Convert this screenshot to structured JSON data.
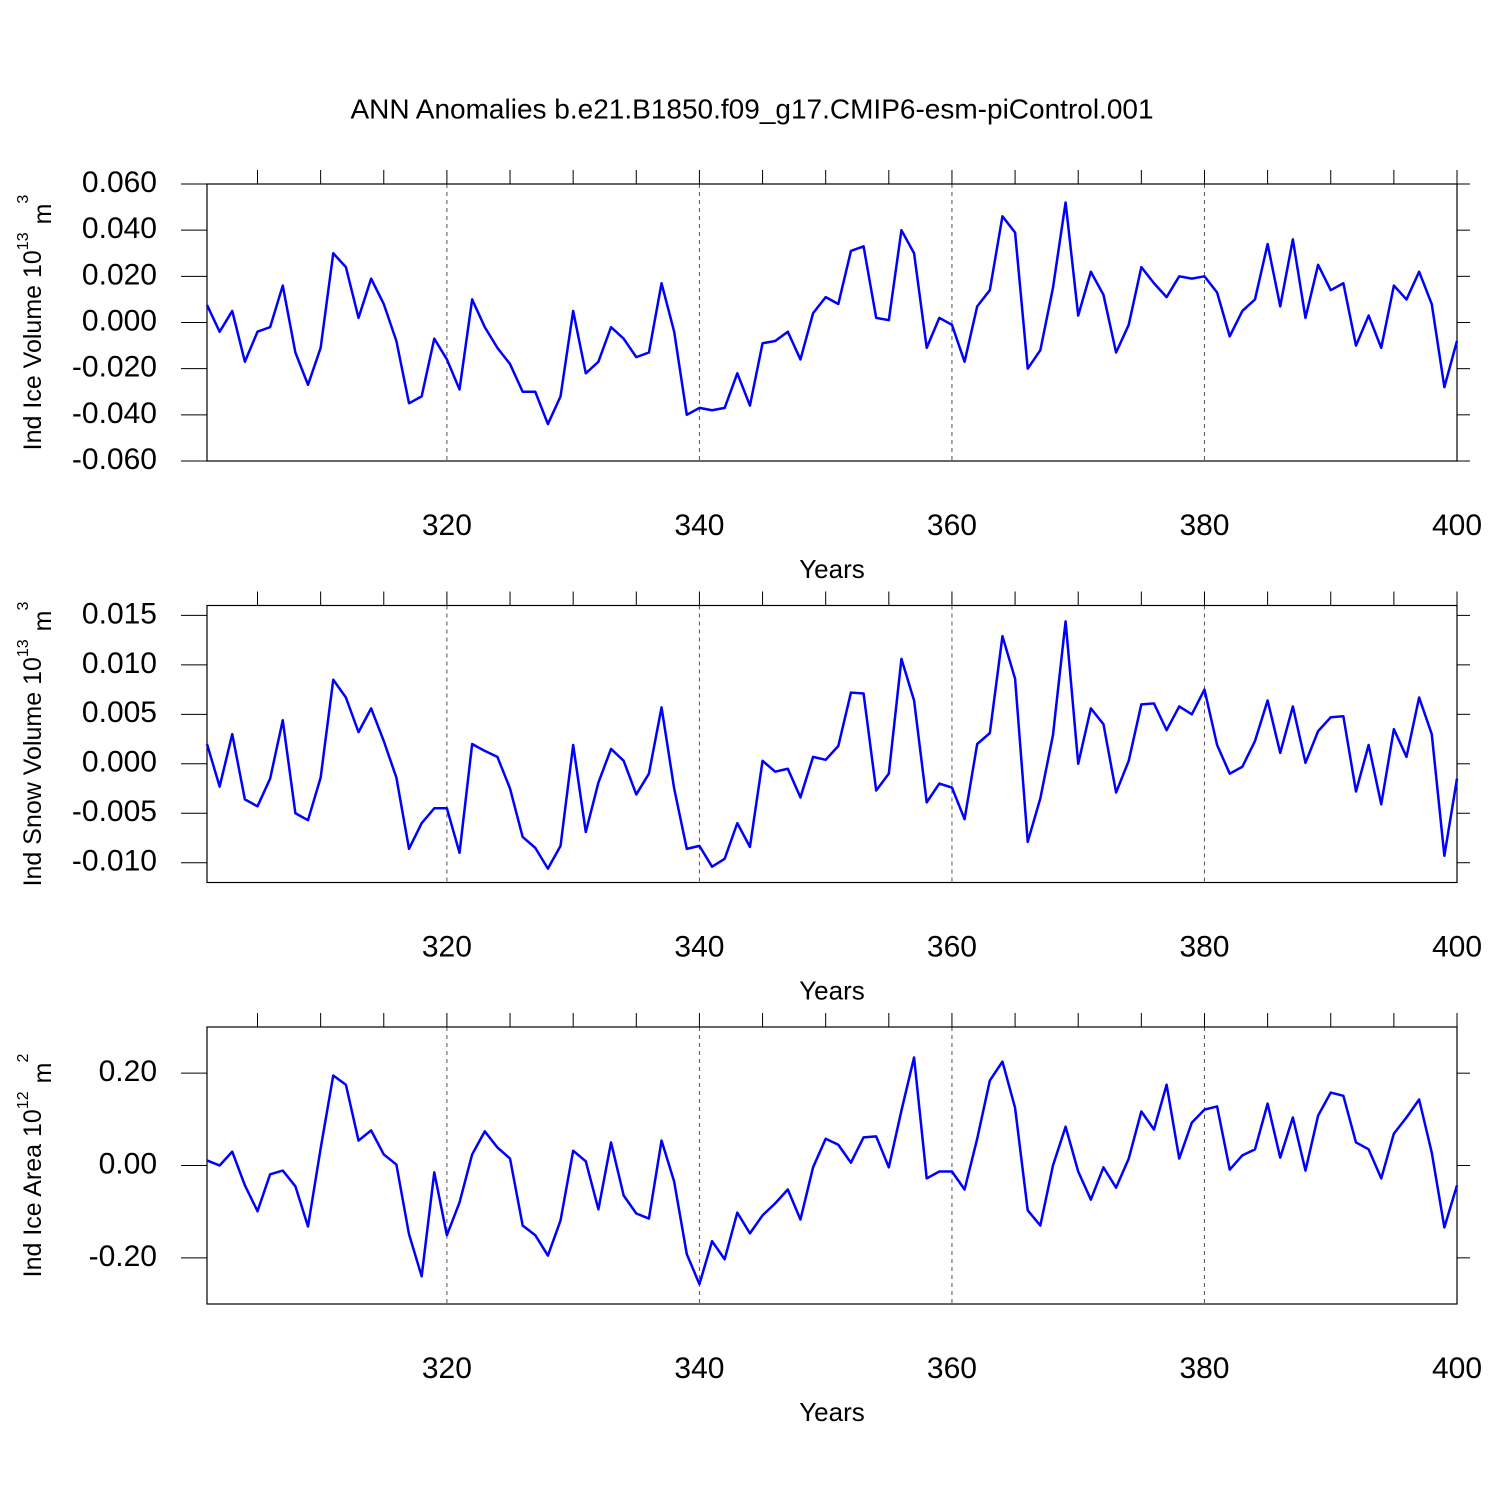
{
  "title": "ANN Anomalies b.e21.B1850.f09_g17.CMIP6-esm-piControl.001",
  "chart_data": [
    {
      "type": "line",
      "y_label": {
        "text": "Ind Ice Volume 10",
        "power": "13",
        "unit": "m",
        "unit_power": "3"
      },
      "x_label": "Years",
      "x": [
        301,
        302,
        303,
        304,
        305,
        306,
        307,
        308,
        309,
        310,
        311,
        312,
        313,
        314,
        315,
        316,
        317,
        318,
        319,
        320,
        321,
        322,
        323,
        324,
        325,
        326,
        327,
        328,
        329,
        330,
        331,
        332,
        333,
        334,
        335,
        336,
        337,
        338,
        339,
        340,
        341,
        342,
        343,
        344,
        345,
        346,
        347,
        348,
        349,
        350,
        351,
        352,
        353,
        354,
        355,
        356,
        357,
        358,
        359,
        360,
        361,
        362,
        363,
        364,
        365,
        366,
        367,
        368,
        369,
        370,
        371,
        372,
        373,
        374,
        375,
        376,
        377,
        378,
        379,
        380,
        381,
        382,
        383,
        384,
        385,
        386,
        387,
        388,
        389,
        390,
        391,
        392,
        393,
        394,
        395,
        396,
        397,
        398,
        399,
        400
      ],
      "series": [
        {
          "color": "#0000ff",
          "values": [
            0.0076,
            -0.004,
            0.005,
            -0.017,
            -0.004,
            -0.002,
            0.016,
            -0.013,
            -0.027,
            -0.011,
            0.03,
            0.024,
            0.002,
            0.019,
            0.008,
            -0.008,
            -0.035,
            -0.032,
            -0.007,
            -0.016,
            -0.029,
            0.01,
            -0.002,
            -0.011,
            -0.018,
            -0.03,
            -0.03,
            -0.044,
            -0.032,
            0.005,
            -0.022,
            -0.017,
            -0.002,
            -0.007,
            -0.015,
            -0.013,
            0.017,
            -0.004,
            -0.04,
            -0.037,
            -0.038,
            -0.037,
            -0.022,
            -0.036,
            -0.009,
            -0.008,
            -0.004,
            -0.016,
            0.004,
            0.011,
            0.008,
            0.031,
            0.033,
            0.002,
            0.001,
            0.04,
            0.03,
            -0.011,
            0.002,
            -0.001,
            -0.017,
            0.007,
            0.014,
            0.046,
            0.039,
            -0.02,
            -0.012,
            0.015,
            0.052,
            0.003,
            0.022,
            0.012,
            -0.013,
            -0.001,
            0.024,
            0.017,
            0.011,
            0.02,
            0.019,
            0.02,
            0.013,
            -0.006,
            0.005,
            0.01,
            0.034,
            0.007,
            0.036,
            0.002,
            0.025,
            0.014,
            0.017,
            -0.01,
            0.003,
            -0.011,
            0.016,
            0.01,
            0.022,
            0.008,
            -0.028,
            -0.008
          ]
        }
      ],
      "xlim": [
        301,
        400
      ],
      "xticks": [
        320,
        340,
        360,
        380,
        400
      ],
      "xminorticks": [
        305,
        310,
        315,
        325,
        330,
        335,
        345,
        350,
        355,
        365,
        370,
        375,
        385,
        390,
        395
      ],
      "ylim": [
        -0.06,
        0.06
      ],
      "yticks": [
        {
          "value": -0.06,
          "label": "-0.060"
        },
        {
          "value": -0.04,
          "label": "-0.040"
        },
        {
          "value": -0.02,
          "label": "-0.020"
        },
        {
          "value": 0,
          "label": "0.000"
        },
        {
          "value": 0.02,
          "label": "0.020"
        },
        {
          "value": 0.04,
          "label": "0.040"
        },
        {
          "value": 0.06,
          "label": "0.060"
        }
      ],
      "grid": "x"
    },
    {
      "type": "line",
      "y_label": {
        "text": "Ind Snow Volume 10",
        "power": "13",
        "unit": "m",
        "unit_power": "3"
      },
      "x_label": "Years",
      "x": [
        301,
        302,
        303,
        304,
        305,
        306,
        307,
        308,
        309,
        310,
        311,
        312,
        313,
        314,
        315,
        316,
        317,
        318,
        319,
        320,
        321,
        322,
        323,
        324,
        325,
        326,
        327,
        328,
        329,
        330,
        331,
        332,
        333,
        334,
        335,
        336,
        337,
        338,
        339,
        340,
        341,
        342,
        343,
        344,
        345,
        346,
        347,
        348,
        349,
        350,
        351,
        352,
        353,
        354,
        355,
        356,
        357,
        358,
        359,
        360,
        361,
        362,
        363,
        364,
        365,
        366,
        367,
        368,
        369,
        370,
        371,
        372,
        373,
        374,
        375,
        376,
        377,
        378,
        379,
        380,
        381,
        382,
        383,
        384,
        385,
        386,
        387,
        388,
        389,
        390,
        391,
        392,
        393,
        394,
        395,
        396,
        397,
        398,
        399,
        400
      ],
      "series": [
        {
          "color": "#0000ff",
          "values": [
            0.002,
            -0.0023,
            0.003,
            -0.0036,
            -0.0043,
            -0.0015,
            0.0044,
            -0.005,
            -0.0057,
            -0.0014,
            0.0085,
            0.0067,
            0.0032,
            0.0056,
            0.0023,
            -0.0014,
            -0.0086,
            -0.006,
            -0.0045,
            -0.0045,
            -0.009,
            0.002,
            0.0013,
            0.0007,
            -0.0025,
            -0.0074,
            -0.0085,
            -0.0106,
            -0.0083,
            0.0019,
            -0.0069,
            -0.0019,
            0.0015,
            0.0003,
            -0.0031,
            -0.001,
            0.0057,
            -0.0025,
            -0.0086,
            -0.0083,
            -0.0104,
            -0.0096,
            -0.006,
            -0.0084,
            0.0003,
            -0.0008,
            -0.0005,
            -0.0034,
            0.0007,
            0.0004,
            0.0018,
            0.0072,
            0.0071,
            -0.0027,
            -0.001,
            0.0106,
            0.0064,
            -0.0039,
            -0.002,
            -0.0024,
            -0.0056,
            0.002,
            0.0031,
            0.0129,
            0.0086,
            -0.0079,
            -0.0035,
            0.0029,
            0.0144,
            0.0,
            0.0056,
            0.004,
            -0.0029,
            0.0003,
            0.006,
            0.0061,
            0.0034,
            0.0058,
            0.005,
            0.0075,
            0.0019,
            -0.001,
            -0.0003,
            0.0023,
            0.0064,
            0.0011,
            0.0058,
            0.0001,
            0.0033,
            0.0047,
            0.0048,
            -0.0028,
            0.0019,
            -0.0041,
            0.0035,
            0.0007,
            0.0067,
            0.003,
            -0.0093,
            -0.0015
          ]
        }
      ],
      "xlim": [
        301,
        400
      ],
      "xticks": [
        320,
        340,
        360,
        380,
        400
      ],
      "xminorticks": [
        305,
        310,
        315,
        325,
        330,
        335,
        345,
        350,
        355,
        365,
        370,
        375,
        385,
        390,
        395
      ],
      "ylim": [
        -0.012,
        0.016
      ],
      "yticks": [
        {
          "value": -0.01,
          "label": "-0.010"
        },
        {
          "value": -0.005,
          "label": "-0.005"
        },
        {
          "value": 0,
          "label": "0.000"
        },
        {
          "value": 0.005,
          "label": "0.005"
        },
        {
          "value": 0.01,
          "label": "0.010"
        },
        {
          "value": 0.015,
          "label": "0.015"
        }
      ],
      "grid": "x"
    },
    {
      "type": "line",
      "y_label": {
        "text": "Ind Ice Area 10",
        "power": "12",
        "unit": "m",
        "unit_power": "2"
      },
      "x_label": "Years",
      "x": [
        301,
        302,
        303,
        304,
        305,
        306,
        307,
        308,
        309,
        310,
        311,
        312,
        313,
        314,
        315,
        316,
        317,
        318,
        319,
        320,
        321,
        322,
        323,
        324,
        325,
        326,
        327,
        328,
        329,
        330,
        331,
        332,
        333,
        334,
        335,
        336,
        337,
        338,
        339,
        340,
        341,
        342,
        343,
        344,
        345,
        346,
        347,
        348,
        349,
        350,
        351,
        352,
        353,
        354,
        355,
        356,
        357,
        358,
        359,
        360,
        361,
        362,
        363,
        364,
        365,
        366,
        367,
        368,
        369,
        370,
        371,
        372,
        373,
        374,
        375,
        376,
        377,
        378,
        379,
        380,
        381,
        382,
        383,
        384,
        385,
        386,
        387,
        388,
        389,
        390,
        391,
        392,
        393,
        394,
        395,
        396,
        397,
        398,
        399,
        400
      ],
      "series": [
        {
          "color": "#0000ff",
          "values": [
            0.011,
            0.0,
            0.03,
            -0.043,
            -0.099,
            -0.019,
            -0.011,
            -0.045,
            -0.132,
            0.037,
            0.195,
            0.175,
            0.054,
            0.076,
            0.024,
            0.002,
            -0.149,
            -0.24,
            -0.015,
            -0.151,
            -0.08,
            0.024,
            0.074,
            0.039,
            0.015,
            -0.13,
            -0.151,
            -0.195,
            -0.119,
            0.032,
            0.009,
            -0.095,
            0.05,
            -0.065,
            -0.104,
            -0.115,
            0.054,
            -0.035,
            -0.192,
            -0.257,
            -0.164,
            -0.203,
            -0.102,
            -0.147,
            -0.108,
            -0.082,
            -0.052,
            -0.117,
            -0.004,
            0.058,
            0.045,
            0.006,
            0.061,
            0.063,
            -0.004,
            0.119,
            0.234,
            -0.028,
            -0.013,
            -0.013,
            -0.052,
            0.058,
            0.184,
            0.225,
            0.125,
            -0.097,
            -0.13,
            0.0,
            0.084,
            -0.013,
            -0.074,
            -0.004,
            -0.048,
            0.015,
            0.117,
            0.078,
            0.175,
            0.015,
            0.093,
            0.121,
            0.128,
            -0.009,
            0.022,
            0.035,
            0.134,
            0.017,
            0.104,
            -0.011,
            0.108,
            0.158,
            0.151,
            0.05,
            0.035,
            -0.028,
            0.069,
            0.104,
            0.143,
            0.028,
            -0.134,
            -0.043
          ]
        }
      ],
      "xlim": [
        301,
        400
      ],
      "xticks": [
        320,
        340,
        360,
        380,
        400
      ],
      "xminorticks": [
        305,
        310,
        315,
        325,
        330,
        335,
        345,
        350,
        355,
        365,
        370,
        375,
        385,
        390,
        395
      ],
      "ylim": [
        -0.3,
        0.3
      ],
      "yticks": [
        {
          "value": -0.2,
          "label": "-0.20"
        },
        {
          "value": 0,
          "label": "0.00"
        },
        {
          "value": 0.2,
          "label": "0.20"
        }
      ],
      "grid": "x"
    }
  ]
}
